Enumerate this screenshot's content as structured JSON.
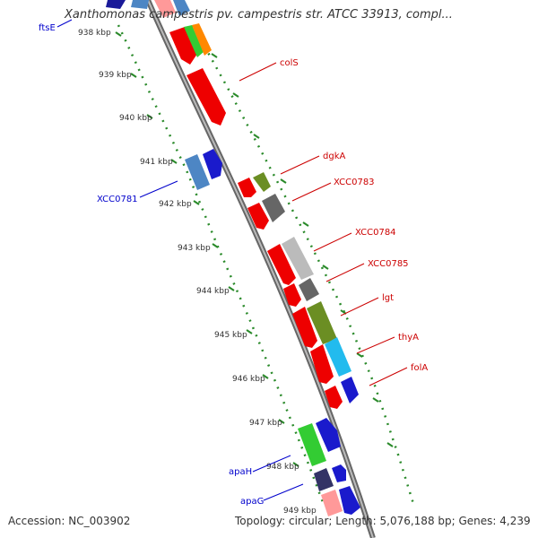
{
  "header": {
    "title": "Xanthomonas campestris pv. campestris str. ATCC 33913, compl..."
  },
  "footer": {
    "accession": "Accession: NC_003902",
    "summary": "Topology: circular; Length: 5,076,188 bp; Genes: 4,239"
  },
  "ticks": [
    "938 kbp",
    "939 kbp",
    "940 kbp",
    "941 kbp",
    "942 kbp",
    "943 kbp",
    "944 kbp",
    "945 kbp",
    "946 kbp",
    "947 kbp",
    "948 kbp",
    "949 kbp"
  ],
  "labels": {
    "ftsE": "ftsE",
    "colS": "colS",
    "dgkA": "dgkA",
    "XCC0783": "XCC0783",
    "XCC0781": "XCC0781",
    "XCC0784": "XCC0784",
    "XCC0785": "XCC0785",
    "lgt": "lgt",
    "thyA": "thyA",
    "folA": "folA",
    "apaH": "apaH",
    "apaG": "apaG"
  },
  "colors": {
    "forward_label": "#cc0000",
    "reverse_label": "#0000cc",
    "backbone": "#888888",
    "tick_dots": "#228822"
  }
}
